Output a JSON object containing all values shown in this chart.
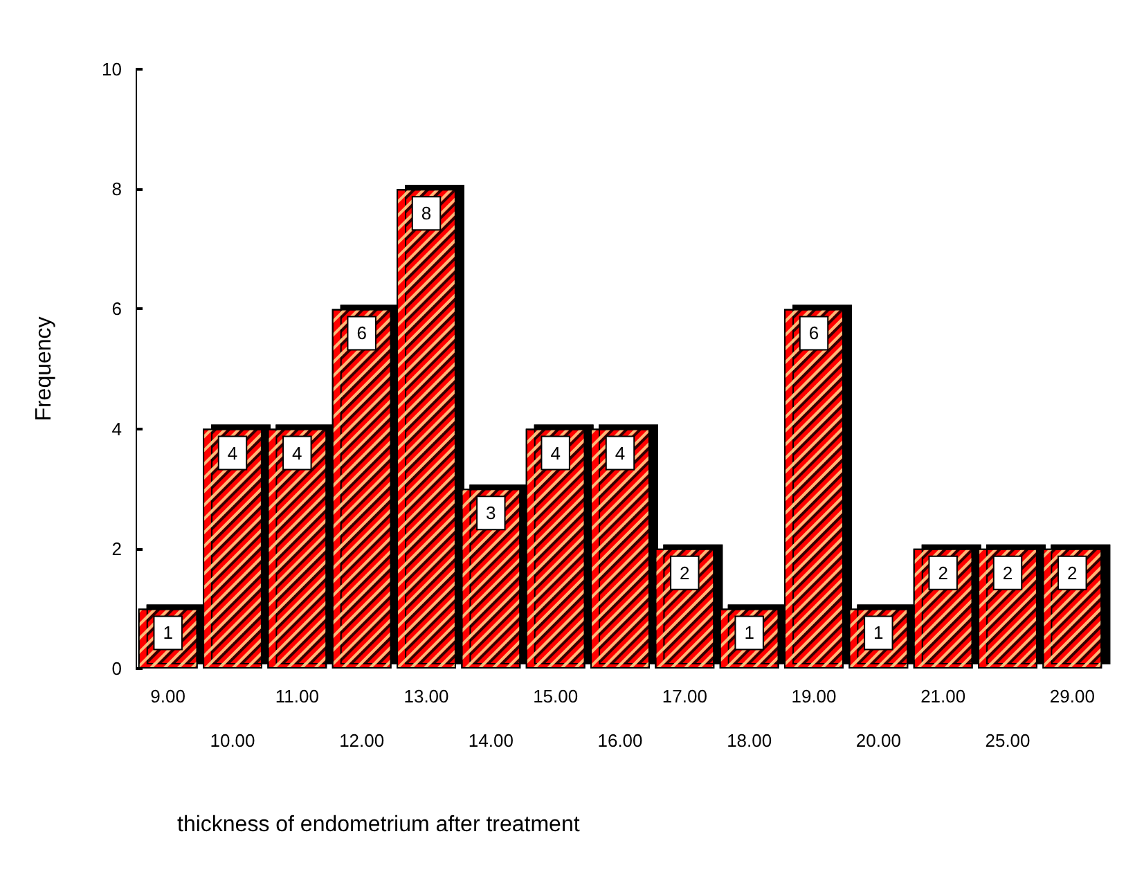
{
  "chart_data": {
    "type": "bar",
    "xlabel": "thickness of endometrium after treatment",
    "ylabel": "Frequency",
    "categories": [
      "9.00",
      "10.00",
      "11.00",
      "12.00",
      "13.00",
      "14.00",
      "15.00",
      "16.00",
      "17.00",
      "18.00",
      "19.00",
      "20.00",
      "21.00",
      "25.00",
      "29.00"
    ],
    "values": [
      1,
      4,
      4,
      6,
      8,
      3,
      4,
      4,
      2,
      1,
      6,
      1,
      2,
      2,
      2
    ],
    "color": "#ff0000",
    "ylim": [
      0,
      10
    ],
    "yticks": [
      0,
      2,
      4,
      6,
      8,
      10
    ],
    "grid": false,
    "data_labels": true
  }
}
